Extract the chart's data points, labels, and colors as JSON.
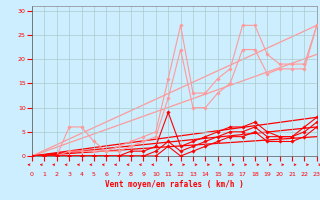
{
  "bg_color": "#cceeff",
  "grid_color": "#aacccc",
  "xlabel": "Vent moyen/en rafales ( km/h )",
  "ylabel_ticks": [
    0,
    5,
    10,
    15,
    20,
    25,
    30
  ],
  "xlim": [
    0,
    23
  ],
  "ylim": [
    0,
    31
  ],
  "x_ticks": [
    0,
    1,
    2,
    3,
    4,
    5,
    6,
    7,
    8,
    9,
    10,
    11,
    12,
    13,
    14,
    15,
    16,
    17,
    18,
    19,
    20,
    21,
    22,
    23
  ],
  "series_light": [
    {
      "color": "#ff9999",
      "x": [
        0,
        1,
        2,
        3,
        4,
        5,
        6,
        7,
        8,
        9,
        10,
        11,
        12,
        13,
        14,
        15,
        16,
        17,
        18,
        19,
        20,
        21,
        22,
        23
      ],
      "y": [
        0,
        0,
        0,
        6,
        6,
        3,
        1,
        2,
        3,
        4,
        5,
        16,
        27,
        13,
        13,
        16,
        18,
        27,
        27,
        21,
        19,
        19,
        19,
        27
      ]
    },
    {
      "color": "#ff9999",
      "x": [
        0,
        1,
        2,
        3,
        4,
        5,
        6,
        7,
        8,
        9,
        10,
        11,
        12,
        13,
        14,
        15,
        16,
        17,
        18,
        19,
        20,
        21,
        22,
        23
      ],
      "y": [
        0,
        0,
        0,
        1,
        1,
        1,
        1,
        1,
        2,
        3,
        4,
        12,
        22,
        10,
        10,
        13,
        15,
        22,
        22,
        17,
        18,
        18,
        18,
        27
      ]
    }
  ],
  "trend_light": [
    {
      "x": [
        0,
        23
      ],
      "y": [
        0,
        27
      ]
    },
    {
      "x": [
        0,
        23
      ],
      "y": [
        0,
        21
      ]
    }
  ],
  "series_dark": [
    {
      "color": "#ff0000",
      "x": [
        0,
        1,
        2,
        3,
        4,
        5,
        6,
        7,
        8,
        9,
        10,
        11,
        12,
        13,
        14,
        15,
        16,
        17,
        18,
        19,
        20,
        21,
        22,
        23
      ],
      "y": [
        0,
        0,
        0,
        0,
        0,
        0,
        0,
        0,
        1,
        1,
        2,
        9,
        2,
        3,
        4,
        5,
        6,
        6,
        7,
        5,
        4,
        4,
        6,
        8
      ]
    },
    {
      "color": "#ff0000",
      "x": [
        0,
        1,
        2,
        3,
        4,
        5,
        6,
        7,
        8,
        9,
        10,
        11,
        12,
        13,
        14,
        15,
        16,
        17,
        18,
        19,
        20,
        21,
        22,
        23
      ],
      "y": [
        0,
        0,
        0,
        0,
        0,
        0,
        0,
        0,
        0,
        0,
        1,
        3,
        1,
        2,
        3,
        4,
        5,
        5,
        6,
        4,
        4,
        4,
        5,
        7
      ]
    },
    {
      "color": "#ff0000",
      "x": [
        0,
        1,
        2,
        3,
        4,
        5,
        6,
        7,
        8,
        9,
        10,
        11,
        12,
        13,
        14,
        15,
        16,
        17,
        18,
        19,
        20,
        21,
        22,
        23
      ],
      "y": [
        0,
        0,
        0,
        0,
        0,
        0,
        0,
        0,
        0,
        0,
        0,
        2,
        0,
        1,
        2,
        3,
        4,
        4,
        5,
        3,
        3,
        3,
        4,
        6
      ]
    }
  ],
  "trend_dark": [
    {
      "x": [
        0,
        23
      ],
      "y": [
        0,
        8
      ]
    },
    {
      "x": [
        0,
        23
      ],
      "y": [
        0,
        6
      ]
    },
    {
      "x": [
        0,
        23
      ],
      "y": [
        0,
        4
      ]
    }
  ],
  "light_color": "#ff9999",
  "dark_color": "#ff0000",
  "arrow_color": "#ff0000",
  "marker": "D",
  "markersize": 1.8,
  "linewidth_series": 0.8,
  "linewidth_trend": 0.9
}
